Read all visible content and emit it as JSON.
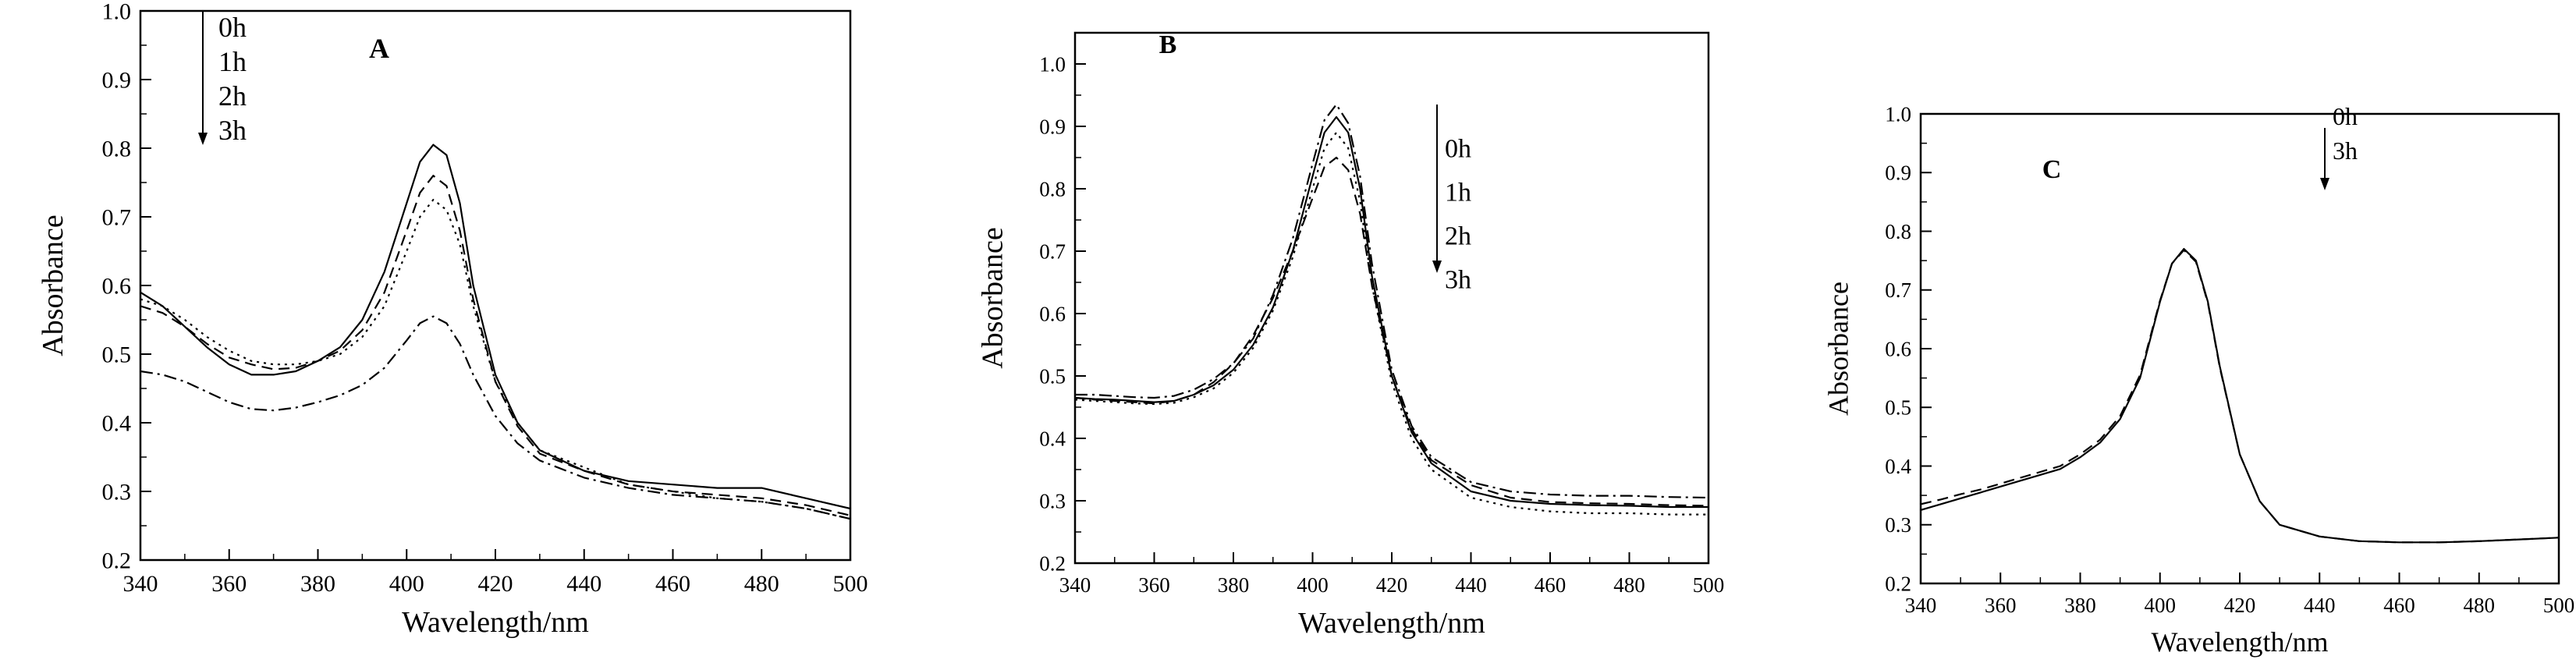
{
  "chart_data": [
    {
      "type": "line",
      "panel": "A",
      "xlabel": "Wavelength/nm",
      "ylabel": "Absorbance",
      "xlim": [
        340,
        500
      ],
      "ylim": [
        0.2,
        1.0
      ],
      "xticks": [
        340,
        360,
        380,
        400,
        420,
        440,
        460,
        480,
        500
      ],
      "yticks": [
        0.2,
        0.3,
        0.4,
        0.5,
        0.6,
        0.7,
        0.8,
        0.9,
        1.0
      ],
      "ytick_labels": [
        "0.2",
        "0.3",
        "0.4",
        "0.5",
        "0.6",
        "0.7",
        "0.8",
        "0.9",
        "1.0"
      ],
      "legend": [
        "0h",
        "1h",
        "2h",
        "3h"
      ],
      "x": [
        340,
        345,
        350,
        355,
        360,
        365,
        370,
        375,
        380,
        385,
        390,
        395,
        400,
        403,
        406,
        409,
        412,
        415,
        420,
        425,
        430,
        440,
        450,
        460,
        470,
        480,
        490,
        500
      ],
      "series": [
        {
          "name": "0h",
          "dash": "solid",
          "values": [
            0.59,
            0.57,
            0.54,
            0.51,
            0.485,
            0.47,
            0.47,
            0.475,
            0.49,
            0.51,
            0.55,
            0.62,
            0.72,
            0.78,
            0.805,
            0.79,
            0.72,
            0.6,
            0.47,
            0.4,
            0.36,
            0.33,
            0.315,
            0.31,
            0.305,
            0.305,
            0.29,
            0.275
          ]
        },
        {
          "name": "1h",
          "dash": "dashed",
          "values": [
            0.57,
            0.56,
            0.54,
            0.515,
            0.495,
            0.485,
            0.478,
            0.48,
            0.49,
            0.505,
            0.535,
            0.59,
            0.68,
            0.735,
            0.76,
            0.745,
            0.68,
            0.58,
            0.46,
            0.395,
            0.355,
            0.33,
            0.31,
            0.3,
            0.295,
            0.29,
            0.28,
            0.265
          ]
        },
        {
          "name": "2h",
          "dash": "dotted",
          "values": [
            0.58,
            0.57,
            0.55,
            0.525,
            0.505,
            0.49,
            0.485,
            0.485,
            0.49,
            0.5,
            0.525,
            0.57,
            0.65,
            0.7,
            0.725,
            0.71,
            0.66,
            0.57,
            0.46,
            0.4,
            0.36,
            0.335,
            0.31,
            0.3,
            0.29,
            0.285,
            0.275,
            0.26
          ]
        },
        {
          "name": "3h",
          "dash": "dashdot",
          "values": [
            0.475,
            0.47,
            0.46,
            0.445,
            0.43,
            0.42,
            0.418,
            0.422,
            0.43,
            0.44,
            0.455,
            0.48,
            0.52,
            0.545,
            0.555,
            0.545,
            0.515,
            0.47,
            0.41,
            0.37,
            0.345,
            0.32,
            0.305,
            0.295,
            0.29,
            0.285,
            0.275,
            0.26
          ]
        }
      ]
    },
    {
      "type": "line",
      "panel": "B",
      "xlabel": "Wavelength/nm",
      "ylabel": "Absorbance",
      "xlim": [
        340,
        500
      ],
      "ylim": [
        0.2,
        1.05
      ],
      "xticks": [
        340,
        360,
        380,
        400,
        420,
        440,
        460,
        480,
        500
      ],
      "yticks": [
        0.2,
        0.3,
        0.4,
        0.5,
        0.6,
        0.7,
        0.8,
        0.9,
        1.0
      ],
      "ytick_labels": [
        "0.2",
        "0.3",
        "0.4",
        "0.5",
        "0.6",
        "0.7",
        "0.8",
        "0.9",
        "1.0"
      ],
      "legend": [
        "0h",
        "1h",
        "2h",
        "3h"
      ],
      "x": [
        340,
        345,
        350,
        355,
        360,
        365,
        370,
        375,
        380,
        385,
        390,
        395,
        400,
        403,
        406,
        409,
        412,
        415,
        420,
        425,
        430,
        440,
        450,
        460,
        470,
        480,
        490,
        500
      ],
      "series": [
        {
          "name": "0h",
          "dash": "solid",
          "values": [
            0.465,
            0.463,
            0.462,
            0.46,
            0.458,
            0.46,
            0.47,
            0.485,
            0.51,
            0.55,
            0.61,
            0.7,
            0.82,
            0.89,
            0.915,
            0.89,
            0.8,
            0.66,
            0.5,
            0.41,
            0.36,
            0.315,
            0.3,
            0.295,
            0.293,
            0.292,
            0.29,
            0.29
          ]
        },
        {
          "name": "1h",
          "dash": "dashdot",
          "values": [
            0.47,
            0.47,
            0.468,
            0.466,
            0.465,
            0.468,
            0.478,
            0.495,
            0.52,
            0.56,
            0.63,
            0.72,
            0.84,
            0.91,
            0.935,
            0.905,
            0.82,
            0.68,
            0.51,
            0.42,
            0.37,
            0.33,
            0.315,
            0.31,
            0.308,
            0.308,
            0.306,
            0.305
          ]
        },
        {
          "name": "2h",
          "dash": "dotted",
          "values": [
            0.462,
            0.46,
            0.458,
            0.456,
            0.455,
            0.457,
            0.466,
            0.48,
            0.505,
            0.545,
            0.605,
            0.69,
            0.8,
            0.865,
            0.89,
            0.865,
            0.78,
            0.645,
            0.49,
            0.4,
            0.35,
            0.305,
            0.29,
            0.283,
            0.28,
            0.28,
            0.278,
            0.278
          ]
        },
        {
          "name": "3h",
          "dash": "dashed",
          "values": [
            0.465,
            0.462,
            0.46,
            0.458,
            0.456,
            0.46,
            0.47,
            0.49,
            0.52,
            0.565,
            0.625,
            0.7,
            0.785,
            0.835,
            0.85,
            0.83,
            0.76,
            0.645,
            0.5,
            0.415,
            0.365,
            0.325,
            0.305,
            0.298,
            0.296,
            0.295,
            0.293,
            0.292
          ]
        }
      ]
    },
    {
      "type": "line",
      "panel": "C",
      "xlabel": "Wavelength/nm",
      "ylabel": "Absorbance",
      "xlim": [
        340,
        500
      ],
      "ylim": [
        0.2,
        1.0
      ],
      "xticks": [
        340,
        360,
        380,
        400,
        420,
        440,
        460,
        480,
        500
      ],
      "yticks": [
        0.2,
        0.3,
        0.4,
        0.5,
        0.6,
        0.7,
        0.8,
        0.9,
        1.0
      ],
      "ytick_labels": [
        "0.2",
        "0.3",
        "0.4",
        "0.5",
        "0.6",
        "0.7",
        "0.8",
        "0.9",
        "1.0"
      ],
      "legend": [
        "0h",
        "3h"
      ],
      "x": [
        340,
        345,
        350,
        355,
        360,
        365,
        370,
        375,
        380,
        385,
        390,
        395,
        400,
        403,
        406,
        409,
        412,
        415,
        420,
        425,
        430,
        440,
        450,
        460,
        470,
        480,
        490,
        500
      ],
      "series": [
        {
          "name": "0h",
          "dash": "solid",
          "values": [
            0.325,
            0.335,
            0.345,
            0.355,
            0.365,
            0.375,
            0.385,
            0.395,
            0.415,
            0.44,
            0.48,
            0.55,
            0.68,
            0.745,
            0.77,
            0.75,
            0.68,
            0.57,
            0.42,
            0.34,
            0.3,
            0.28,
            0.272,
            0.27,
            0.27,
            0.272,
            0.275,
            0.278
          ]
        },
        {
          "name": "3h",
          "dash": "dashed",
          "values": [
            0.335,
            0.343,
            0.352,
            0.36,
            0.37,
            0.38,
            0.39,
            0.4,
            0.42,
            0.445,
            0.485,
            0.555,
            0.682,
            0.745,
            0.768,
            0.748,
            0.678,
            0.568,
            0.42,
            0.34,
            0.3,
            0.28,
            0.272,
            0.27,
            0.27,
            0.272,
            0.275,
            0.278
          ]
        }
      ]
    }
  ]
}
